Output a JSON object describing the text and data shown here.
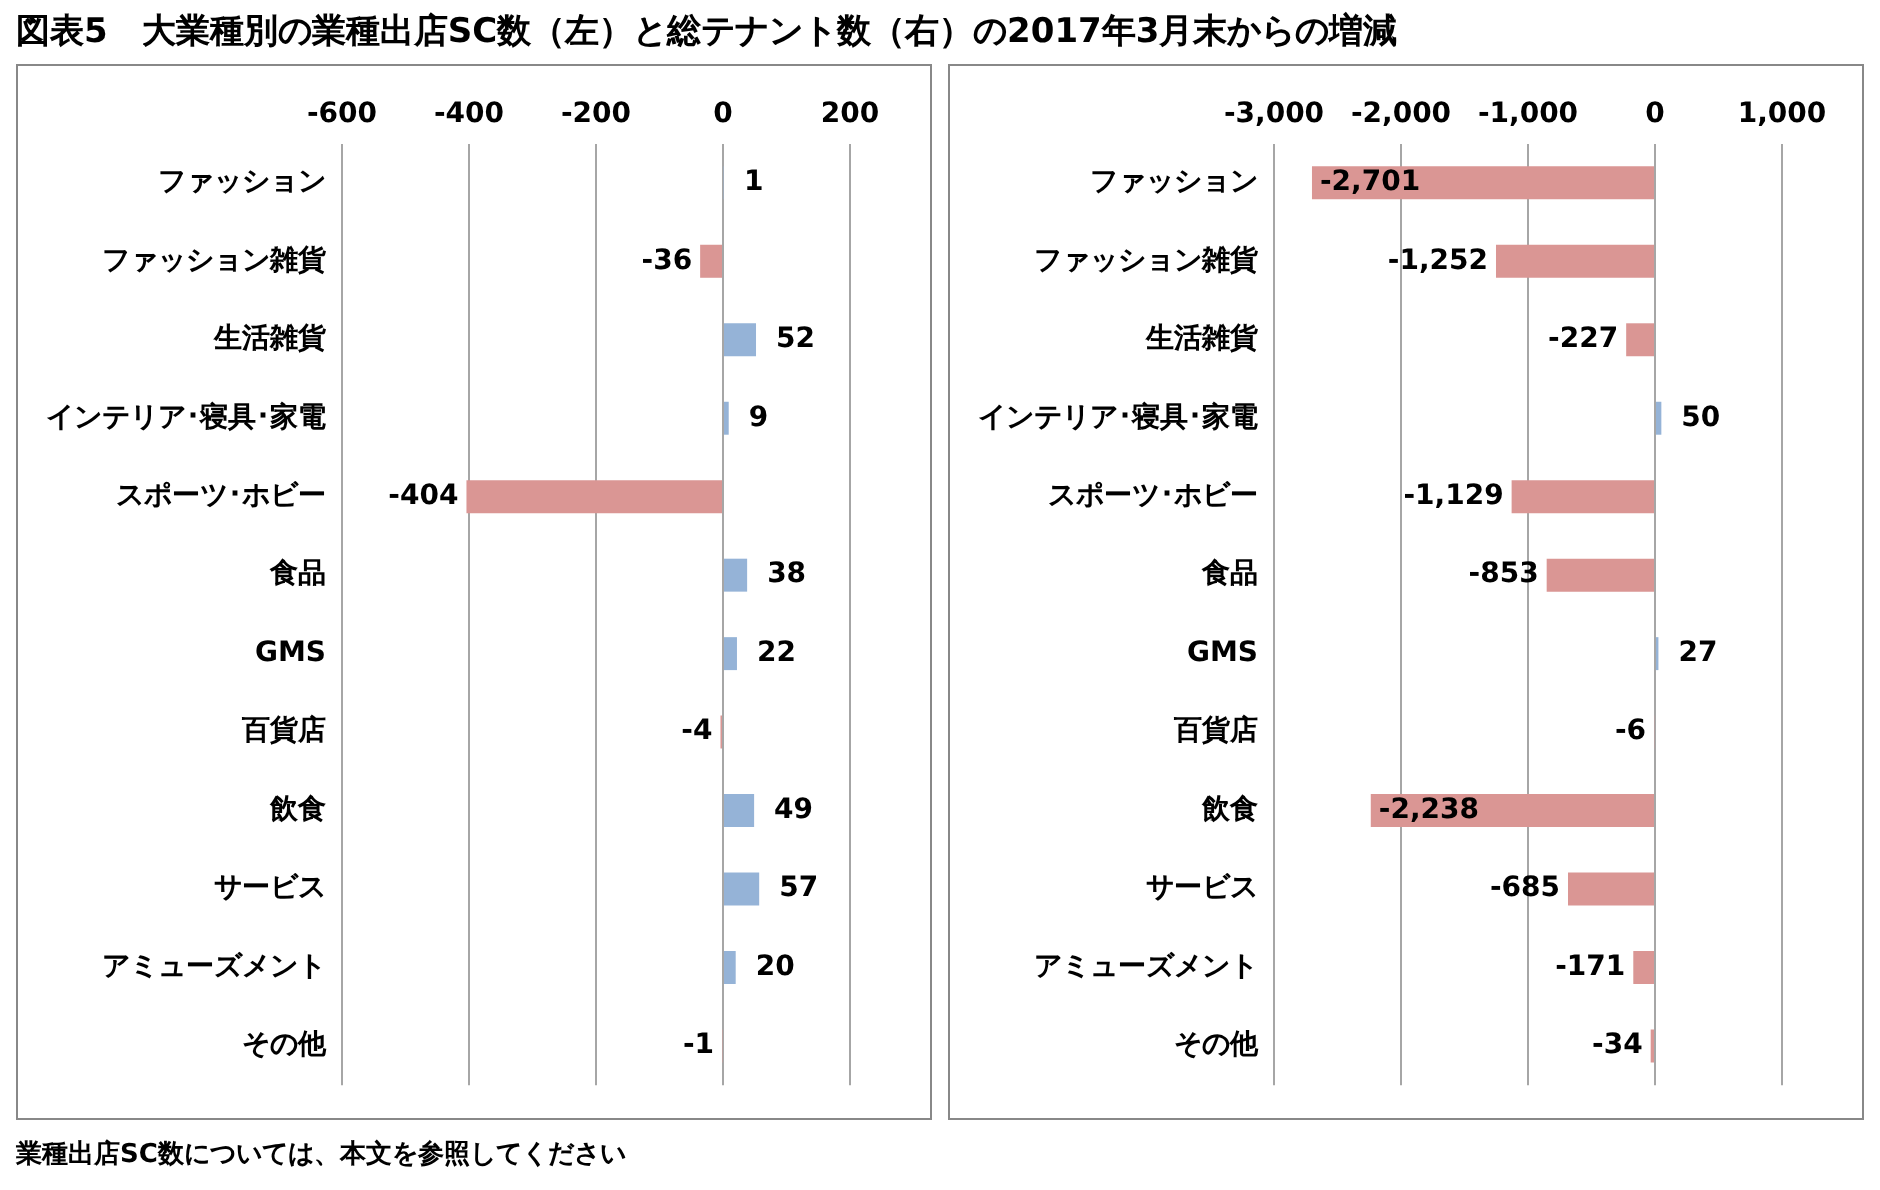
{
  "chart_data": [
    {
      "type": "bar",
      "orientation": "horizontal",
      "title": "図表5　大業種別の業種出店SC数（左）と総テナント数（右）の2017年3月末からの増減",
      "annotations": [
        "業種出店SC数については、本文を参照してください"
      ],
      "categories": [
        "ファッション",
        "ファッション雑貨",
        "生活雑貨",
        "インテリア･寝具･家電",
        "スポーツ･ホビー",
        "食品",
        "GMS",
        "百貨店",
        "飲食",
        "サービス",
        "アミューズメント",
        "その他"
      ],
      "values": [
        1,
        -36,
        52,
        9,
        -404,
        38,
        22,
        -4,
        49,
        57,
        20,
        -1
      ],
      "colors": [
        "#95b3d7",
        "#da9694",
        "#95b3d7",
        "#95b3d7",
        "#da9694",
        "#95b3d7",
        "#95b3d7",
        "#da9694",
        "#95b3d7",
        "#95b3d7",
        "#95b3d7",
        "#da9694"
      ],
      "xlim": [
        -600,
        200
      ],
      "xticks": [
        -600,
        -400,
        -200,
        0,
        200
      ],
      "grid": "x",
      "data_labels": true,
      "legend": false
    },
    {
      "type": "bar",
      "orientation": "horizontal",
      "categories": [
        "ファッション",
        "ファッション雑貨",
        "生活雑貨",
        "インテリア･寝具･家電",
        "スポーツ･ホビー",
        "食品",
        "GMS",
        "百貨店",
        "飲食",
        "サービス",
        "アミューズメント",
        "その他"
      ],
      "values": [
        -2701,
        -1252,
        -227,
        50,
        -1129,
        -853,
        27,
        -6,
        -2238,
        -685,
        -171,
        -34
      ],
      "value_labels": [
        "-2,701",
        "-1,252",
        "-227",
        "50",
        "-1,129",
        "-853",
        "27",
        "-6",
        "-2,238",
        "-685",
        "-171",
        "-34"
      ],
      "colors": [
        "#da9694",
        "#da9694",
        "#da9694",
        "#95b3d7",
        "#da9694",
        "#da9694",
        "#95b3d7",
        "#da9694",
        "#da9694",
        "#da9694",
        "#da9694",
        "#da9694"
      ],
      "xlim": [
        -3000,
        1000
      ],
      "xticks": [
        {
          "value": -3000,
          "label": "-3,000"
        },
        {
          "value": -2000,
          "label": "-2,000"
        },
        {
          "value": -1000,
          "label": "-1,000"
        },
        0,
        {
          "value": 1000,
          "label": "1,000"
        }
      ],
      "grid": "x",
      "legend": false
    }
  ]
}
